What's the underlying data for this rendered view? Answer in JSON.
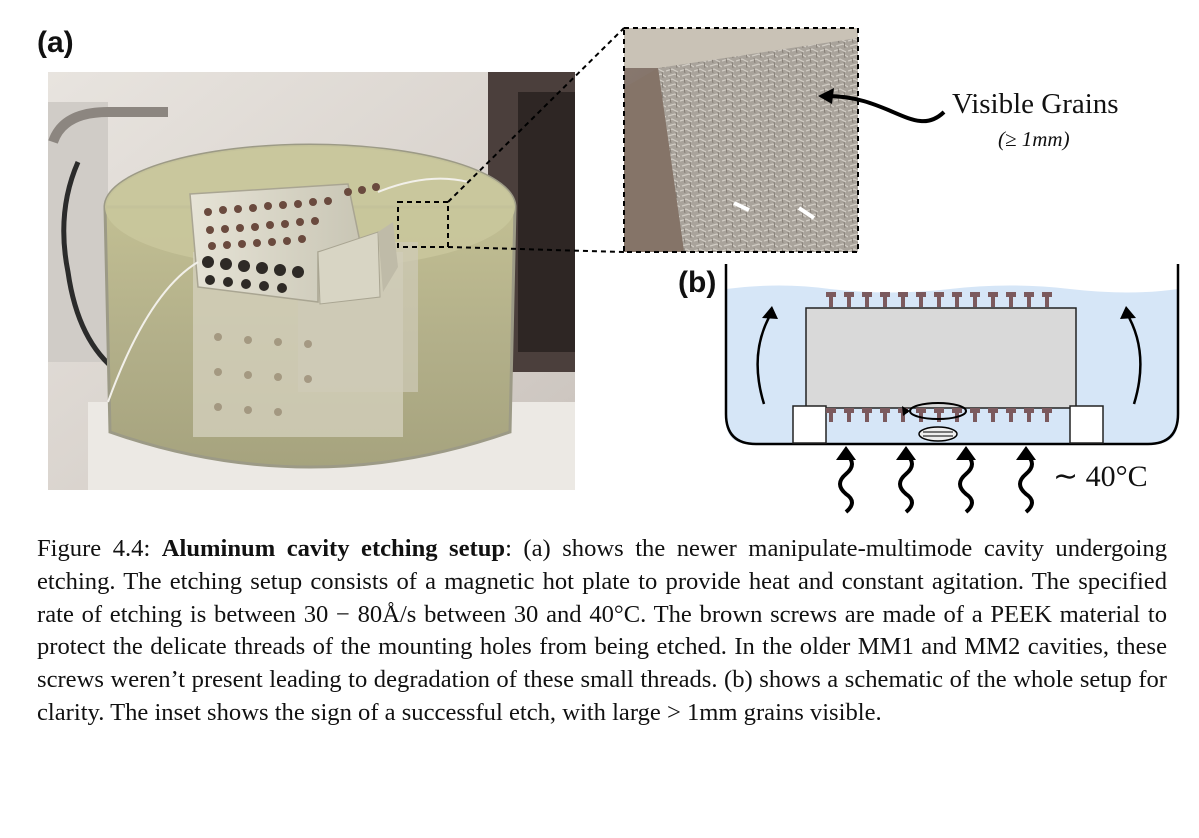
{
  "panels": {
    "a_label": "(a)",
    "b_label": "(b)"
  },
  "inset": {
    "callout_text": "Visible Grains",
    "callout_subtext": "(≥ 1mm)"
  },
  "schematic": {
    "temperature_label": "∼ 40°C"
  },
  "caption": {
    "prefix": "Figure 4.4: ",
    "title": "Aluminum cavity etching setup",
    "body": ": (a) shows the newer manipulate-multimode cavity undergoing etching. The etching setup consists of a magnetic hot plate to provide heat and constant agitation. The specified rate of etching is between 30 − 80Å/s between 30 and 40°C. The brown screws are made of a PEEK material to protect the delicate threads of the mounting holes from being etched. In the older MM1 and MM2 cavities, these screws weren’t present leading to degradation of these small threads. (b) shows a schematic of the whole setup for clarity. The inset shows the sign of a successful etch, with large > 1mm grains visible."
  },
  "colors": {
    "liquid_fill": "#d6e6f7",
    "screw": "#7b5a5e",
    "block": "#d9d9d9",
    "etchant_photo": "#b7b48a"
  },
  "icons": {
    "heat": "wavy-heat-arrow-icon",
    "flow": "curved-flow-arrow-icon",
    "stir": "magnetic-stir-bar-icon"
  }
}
